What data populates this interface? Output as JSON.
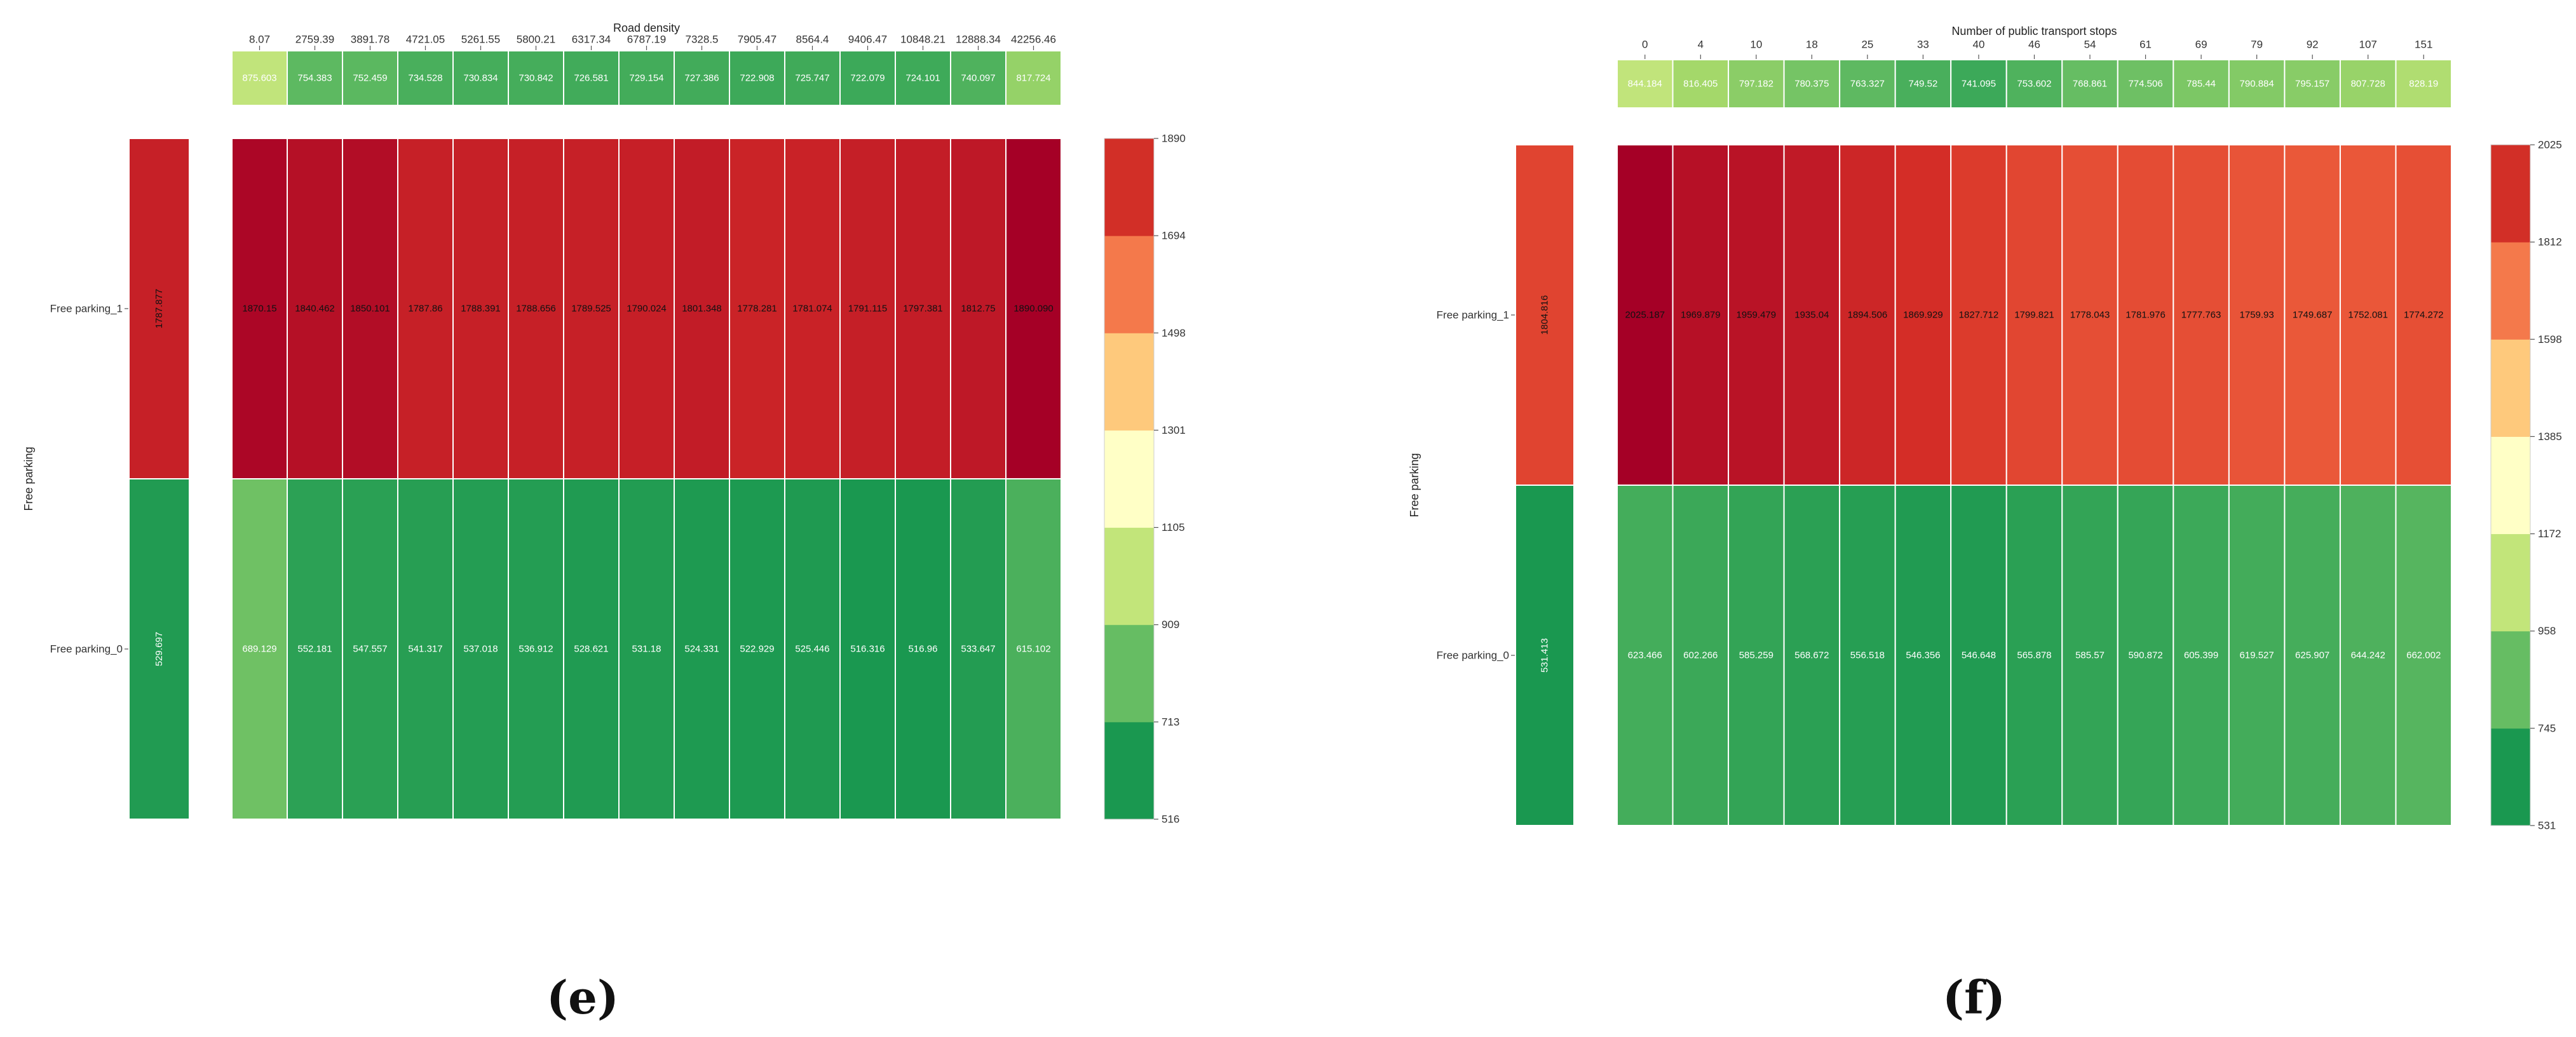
{
  "chart_data": [
    {
      "panel": "(e)",
      "type": "heatmap",
      "title": "Road density",
      "ylabel": "Free parking",
      "columns": [
        "8.07",
        "2759.39",
        "3891.78",
        "4721.05",
        "5261.55",
        "5800.21",
        "6317.34",
        "6787.19",
        "7328.5",
        "7905.47",
        "8564.4",
        "9406.47",
        "10848.21",
        "12888.34",
        "42256.46"
      ],
      "column_means": [
        "875.603",
        "754.383",
        "752.459",
        "734.528",
        "730.834",
        "730.842",
        "726.581",
        "729.154",
        "727.386",
        "722.908",
        "725.747",
        "722.079",
        "724.101",
        "740.097",
        "817.724"
      ],
      "rows": [
        "Free parking_1",
        "Free parking_0"
      ],
      "row_means": [
        "1787.877",
        "529.697"
      ],
      "values": [
        [
          "1870.15",
          "1840.462",
          "1850.101",
          "1787.86",
          "1788.391",
          "1788.656",
          "1789.525",
          "1790.024",
          "1801.348",
          "1778.281",
          "1781.074",
          "1791.115",
          "1797.381",
          "1812.75",
          "1890.090"
        ],
        [
          "689.129",
          "552.181",
          "547.557",
          "541.317",
          "537.018",
          "536.912",
          "528.621",
          "531.18",
          "524.331",
          "522.929",
          "525.446",
          "516.316",
          "516.96",
          "533.647",
          "615.102"
        ]
      ],
      "colorbar_ticks": [
        "1890",
        "1694",
        "1498",
        "1301",
        "1105",
        "909",
        "713",
        "516"
      ],
      "vmin": 516,
      "vmax": 1890
    },
    {
      "panel": "(f)",
      "type": "heatmap",
      "title": "Number of public transport stops",
      "ylabel": "Free parking",
      "columns": [
        "0",
        "4",
        "10",
        "18",
        "25",
        "33",
        "40",
        "46",
        "54",
        "61",
        "69",
        "79",
        "92",
        "107",
        "151"
      ],
      "column_means": [
        "844.184",
        "816.405",
        "797.182",
        "780.375",
        "763.327",
        "749.52",
        "741.095",
        "753.602",
        "768.861",
        "774.506",
        "785.44",
        "790.884",
        "795.157",
        "807.728",
        "828.19"
      ],
      "rows": [
        "Free parking_1",
        "Free parking_0"
      ],
      "row_means": [
        "1804.816",
        "531.413"
      ],
      "values": [
        [
          "2025.187",
          "1969.879",
          "1959.479",
          "1935.04",
          "1894.506",
          "1869.929",
          "1827.712",
          "1799.821",
          "1778.043",
          "1781.976",
          "1777.763",
          "1759.93",
          "1749.687",
          "1752.081",
          "1774.272"
        ],
        [
          "623.466",
          "602.266",
          "585.259",
          "568.672",
          "556.518",
          "546.356",
          "546.648",
          "565.878",
          "585.57",
          "590.872",
          "605.399",
          "619.527",
          "625.907",
          "644.242",
          "662.002"
        ]
      ],
      "colorbar_ticks": [
        "2025",
        "1812",
        "1598",
        "1385",
        "1172",
        "958",
        "745",
        "531"
      ],
      "vmin": 531,
      "vmax": 2025
    }
  ],
  "colors": {
    "scale": [
      "#1a9850",
      "#66bd63",
      "#a6d96a",
      "#d9ef8b",
      "#ffffbf",
      "#fee08b",
      "#fdae61",
      "#f46d43",
      "#d73027",
      "#a50026"
    ],
    "binned": [
      "#1a9850",
      "#66bd63",
      "#c2e57a",
      "#ffffc6",
      "#fec97c",
      "#f4794b",
      "#d22f27"
    ]
  }
}
